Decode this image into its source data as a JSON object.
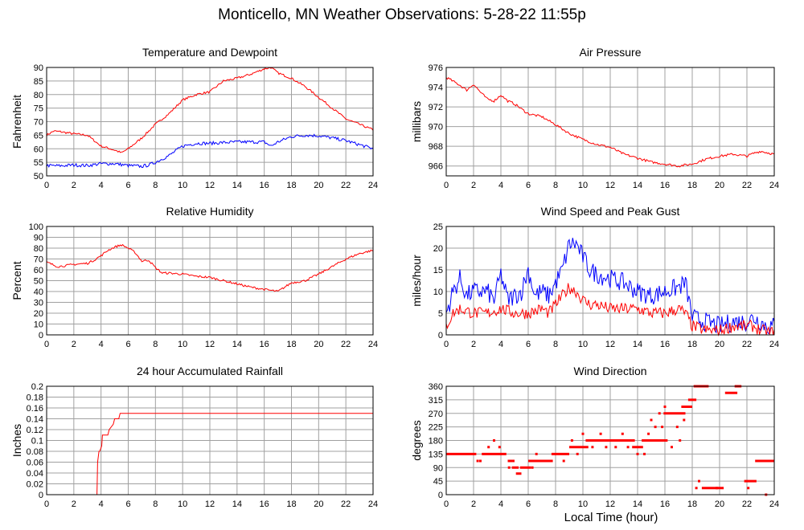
{
  "title": "Monticello, MN Weather Observations: 5-28-22 11:55p",
  "xlabel_bottom": "Local Time (hour)",
  "colors": {
    "red": "#ff0000",
    "blue": "#0000ff",
    "grid": "#a0a0a0",
    "frame": "#000000"
  },
  "chart_data": [
    {
      "type": "line",
      "title": "Temperature and Dewpoint",
      "ylabel": "Fahrenheit",
      "xlim": [
        0,
        24
      ],
      "ylim": [
        50,
        90
      ],
      "xticks": [
        0,
        2,
        4,
        6,
        8,
        10,
        12,
        14,
        16,
        18,
        20,
        22,
        24
      ],
      "yticks": [
        50,
        55,
        60,
        65,
        70,
        75,
        80,
        85,
        90
      ],
      "grid": true,
      "series": [
        {
          "color": "#ff0000",
          "noise": 0.4,
          "x": [
            0,
            0.5,
            1,
            2,
            3,
            3.5,
            4,
            5,
            5.5,
            6,
            7,
            8,
            9,
            10,
            11,
            12,
            13,
            14,
            15,
            16,
            16.5,
            17,
            18,
            19,
            20,
            21,
            22,
            23,
            24
          ],
          "y": [
            65,
            66.5,
            66.3,
            65.5,
            65,
            63,
            61,
            59.5,
            58.5,
            60,
            64,
            69,
            73,
            78,
            80,
            81,
            85,
            86,
            87.5,
            89.5,
            90,
            88,
            86,
            83,
            79,
            75,
            71,
            69,
            67
          ]
        },
        {
          "color": "#0000ff",
          "noise": 0.6,
          "x": [
            0,
            1,
            2,
            3,
            4,
            5,
            6,
            7,
            7.5,
            8,
            9,
            10,
            11,
            12,
            13,
            14,
            15,
            16,
            16.5,
            17,
            18,
            19,
            20,
            21,
            22,
            23,
            24
          ],
          "y": [
            53.8,
            53.7,
            54,
            53.8,
            54.5,
            54.5,
            53.8,
            53.5,
            54,
            55,
            57.5,
            61,
            62,
            62,
            62.3,
            62.5,
            62.5,
            62.5,
            61,
            62.5,
            64.5,
            65,
            64.8,
            64,
            63,
            61.5,
            60
          ]
        }
      ]
    },
    {
      "type": "line",
      "title": "Air Pressure",
      "ylabel": "millibars",
      "xlim": [
        0,
        24
      ],
      "ylim": [
        965,
        976
      ],
      "xticks": [
        0,
        2,
        4,
        6,
        8,
        10,
        12,
        14,
        16,
        18,
        20,
        22,
        24
      ],
      "yticks": [
        966,
        968,
        970,
        972,
        974,
        976
      ],
      "grid": true,
      "series": [
        {
          "color": "#ff0000",
          "noise": 0.12,
          "x": [
            0,
            1,
            1.5,
            2,
            2.5,
            3,
            3.5,
            4,
            4.5,
            5,
            6,
            7,
            7.5,
            8,
            9,
            10,
            11,
            12,
            13,
            14,
            15,
            16,
            17,
            18,
            19,
            20,
            21,
            22,
            22.5,
            23,
            24
          ],
          "y": [
            975,
            974.2,
            973.7,
            974.3,
            973.5,
            972.8,
            972.6,
            973.2,
            972.6,
            972.3,
            971.3,
            971,
            970.6,
            970.2,
            969.3,
            968.7,
            968.2,
            967.9,
            967.2,
            966.8,
            966.4,
            966.2,
            966,
            966.2,
            966.7,
            967,
            967.2,
            967,
            967.3,
            967.5,
            967.2
          ]
        }
      ]
    },
    {
      "type": "line",
      "title": "Relative Humidity",
      "ylabel": "Percent",
      "xlim": [
        0,
        24
      ],
      "ylim": [
        0,
        100
      ],
      "xticks": [
        0,
        2,
        4,
        6,
        8,
        10,
        12,
        14,
        16,
        18,
        20,
        22,
        24
      ],
      "yticks": [
        0,
        10,
        20,
        30,
        40,
        50,
        60,
        70,
        80,
        90,
        100
      ],
      "grid": true,
      "series": [
        {
          "color": "#ff0000",
          "noise": 1.0,
          "x": [
            0,
            0.8,
            1.5,
            2,
            3,
            3.5,
            4,
            4.5,
            5,
            5.5,
            6,
            6.5,
            7,
            7.5,
            8,
            8.5,
            9,
            10,
            11,
            12,
            13,
            14,
            15,
            16,
            16.5,
            17,
            17.5,
            18,
            19,
            20,
            21,
            22,
            23,
            24
          ],
          "y": [
            67,
            63,
            64,
            65,
            66,
            69,
            73,
            78,
            81,
            83,
            80,
            76,
            68,
            69,
            62,
            57,
            57,
            56,
            54,
            53,
            50,
            47,
            44,
            42,
            41,
            40,
            44,
            48,
            50,
            56,
            63,
            70,
            75,
            78
          ]
        }
      ]
    },
    {
      "type": "line",
      "title": "Wind Speed and Peak Gust",
      "ylabel": "miles/hour",
      "xlim": [
        0,
        24
      ],
      "ylim": [
        0,
        25
      ],
      "xticks": [
        0,
        2,
        4,
        6,
        8,
        10,
        12,
        14,
        16,
        18,
        20,
        22,
        24
      ],
      "yticks": [
        0,
        5,
        10,
        15,
        20,
        25
      ],
      "grid": true,
      "series": [
        {
          "color": "#0000ff",
          "noise": 2.2,
          "x": [
            0,
            0.5,
            1,
            1.5,
            2,
            3,
            3.5,
            4,
            4.5,
            5,
            5.5,
            6,
            6.5,
            7,
            7.5,
            8,
            8.5,
            9,
            9.5,
            10,
            10.5,
            11,
            12,
            13,
            14,
            15,
            16,
            17,
            17.5,
            18,
            19,
            20,
            21,
            22,
            22.5,
            23,
            23.5,
            24
          ],
          "y": [
            5,
            10,
            13,
            9,
            10,
            10,
            8,
            14,
            8,
            9,
            10,
            15,
            9,
            10,
            9,
            12,
            15,
            21,
            21,
            18,
            15,
            14,
            13,
            12,
            10,
            9,
            10,
            11,
            12,
            4,
            3,
            2,
            3,
            3,
            4,
            3,
            2,
            2
          ]
        },
        {
          "color": "#ff0000",
          "noise": 1.4,
          "x": [
            0,
            0.5,
            1,
            2,
            3,
            4,
            5,
            6,
            7,
            7.5,
            8,
            8.5,
            9,
            9.5,
            10,
            10.5,
            11,
            12,
            13,
            14,
            15,
            16,
            17,
            17.5,
            18,
            19,
            20,
            21,
            22,
            22.5,
            23,
            24
          ],
          "y": [
            2,
            5,
            6,
            5,
            5,
            6,
            5,
            5,
            6,
            5,
            7,
            9,
            11,
            10,
            8,
            7,
            7,
            6,
            6,
            6,
            5,
            5,
            6,
            5,
            2,
            1,
            1,
            2,
            2,
            2,
            1,
            0.5
          ]
        }
      ]
    },
    {
      "type": "line",
      "title": "24 hour Accumulated Rainfall",
      "ylabel": "Inches",
      "xlim": [
        0,
        24
      ],
      "ylim": [
        0,
        0.2
      ],
      "xticks": [
        0,
        2,
        4,
        6,
        8,
        10,
        12,
        14,
        16,
        18,
        20,
        22,
        24
      ],
      "yticks": [
        0,
        0.02,
        0.04,
        0.06,
        0.08,
        0.1,
        0.12,
        0.14,
        0.16,
        0.18,
        0.2
      ],
      "grid": true,
      "series": [
        {
          "color": "#ff0000",
          "noise": 0,
          "x": [
            0,
            3.7,
            3.75,
            3.85,
            3.9,
            4.05,
            4.1,
            4.5,
            4.6,
            4.9,
            5.0,
            5.3,
            5.4,
            24
          ],
          "y": [
            0,
            0,
            0.06,
            0.08,
            0.08,
            0.09,
            0.11,
            0.11,
            0.12,
            0.13,
            0.14,
            0.14,
            0.15,
            0.15
          ]
        }
      ]
    },
    {
      "type": "scatter",
      "title": "Wind Direction",
      "ylabel": "degrees",
      "xlim": [
        0,
        24
      ],
      "ylim": [
        0,
        360
      ],
      "xticks": [
        0,
        2,
        4,
        6,
        8,
        10,
        12,
        14,
        16,
        18,
        20,
        22,
        24
      ],
      "yticks": [
        0,
        45,
        90,
        135,
        180,
        225,
        270,
        315,
        360
      ],
      "grid": true,
      "series": [
        {
          "color": "#ff0000",
          "segments": [
            {
              "x": [
                0,
                2.2
              ],
              "y": 135
            },
            {
              "x": [
                2.6,
                4.4
              ],
              "y": 135
            },
            {
              "x": [
                4.5,
                5.0
              ],
              "y": 112
            },
            {
              "x": [
                4.8,
                5.3
              ],
              "y": 90
            },
            {
              "x": [
                5.1,
                5.5
              ],
              "y": 70
            },
            {
              "x": [
                5.4,
                6.2
              ],
              "y": 90
            },
            {
              "x": [
                6.0,
                7.8
              ],
              "y": 112
            },
            {
              "x": [
                7.7,
                9.0
              ],
              "y": 135
            },
            {
              "x": [
                9.0,
                10.4
              ],
              "y": 158
            },
            {
              "x": [
                10.2,
                13.8
              ],
              "y": 180
            },
            {
              "x": [
                13.6,
                14.4
              ],
              "y": 158
            },
            {
              "x": [
                14.3,
                16.2
              ],
              "y": 180
            },
            {
              "x": [
                15.9,
                17.5
              ],
              "y": 270
            },
            {
              "x": [
                17.2,
                18.0
              ],
              "y": 292
            },
            {
              "x": [
                17.7,
                18.3
              ],
              "y": 315
            },
            {
              "x": [
                18.1,
                19.2
              ],
              "y": 360
            },
            {
              "x": [
                18.7,
                20.3
              ],
              "y": 22
            },
            {
              "x": [
                20.4,
                21.3
              ],
              "y": 338
            },
            {
              "x": [
                21.1,
                21.6
              ],
              "y": 360
            },
            {
              "x": [
                21.8,
                22.7
              ],
              "y": 45
            },
            {
              "x": [
                22.6,
                24.0
              ],
              "y": 112
            }
          ],
          "scatter": [
            [
              2.3,
              112
            ],
            [
              2.5,
              112
            ],
            [
              3.1,
              158
            ],
            [
              3.5,
              180
            ],
            [
              3.9,
              158
            ],
            [
              4.6,
              90
            ],
            [
              6.3,
              90
            ],
            [
              6.6,
              135
            ],
            [
              8.6,
              112
            ],
            [
              9.2,
              180
            ],
            [
              9.6,
              135
            ],
            [
              10.0,
              202
            ],
            [
              10.7,
              158
            ],
            [
              11.3,
              202
            ],
            [
              11.7,
              158
            ],
            [
              12.4,
              158
            ],
            [
              12.9,
              202
            ],
            [
              13.3,
              158
            ],
            [
              14.0,
              135
            ],
            [
              14.5,
              135
            ],
            [
              14.8,
              202
            ],
            [
              15.0,
              248
            ],
            [
              15.3,
              225
            ],
            [
              15.6,
              270
            ],
            [
              15.8,
              225
            ],
            [
              16.0,
              292
            ],
            [
              16.5,
              158
            ],
            [
              16.9,
              225
            ],
            [
              17.1,
              180
            ],
            [
              17.4,
              248
            ],
            [
              18.3,
              22
            ],
            [
              18.5,
              45
            ],
            [
              19.8,
              22
            ],
            [
              22.1,
              22
            ],
            [
              23.4,
              0
            ]
          ]
        }
      ]
    }
  ]
}
